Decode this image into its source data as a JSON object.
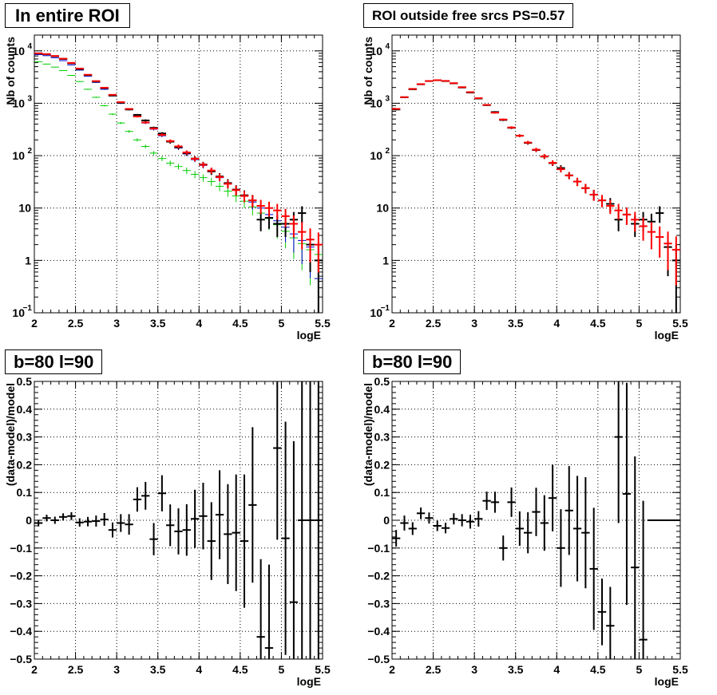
{
  "chart_data": [
    {
      "type": "scatter",
      "title": "In entire ROI",
      "xlabel": "logE",
      "ylabel": "Nb of counts",
      "xlim": [
        2,
        5.5
      ],
      "ylim": [
        0.1,
        20000
      ],
      "yscale": "log",
      "grid": true,
      "x_ticks": [
        "2",
        "2.5",
        "3",
        "3.5",
        "4",
        "4.5",
        "5",
        "5.5"
      ],
      "y_ticks": [
        {
          "value": 0.1,
          "base": "10",
          "exp": "−1"
        },
        {
          "value": 1,
          "base": "1",
          "exp": ""
        },
        {
          "value": 10,
          "base": "10",
          "exp": ""
        },
        {
          "value": 100,
          "base": "10",
          "exp": "2"
        },
        {
          "value": 1000,
          "base": "10",
          "exp": "3"
        },
        {
          "value": 10000,
          "base": "10",
          "exp": "4"
        }
      ],
      "series": [
        {
          "color": "#00cc00",
          "style": "hist",
          "x": [
            2.05,
            2.15,
            2.25,
            2.35,
            2.45,
            2.55,
            2.65,
            2.75,
            2.85,
            2.95,
            3.05,
            3.15,
            3.25,
            3.35,
            3.45,
            3.55,
            3.65,
            3.75,
            3.85,
            3.95,
            4.05,
            4.15,
            4.25,
            4.35,
            4.45,
            4.55,
            4.65,
            4.75,
            4.85,
            4.95,
            5.05,
            5.15,
            5.25,
            5.35,
            5.45
          ],
          "y": [
            6200,
            5600,
            4900,
            4200,
            3400,
            2600,
            1850,
            1300,
            900,
            620,
            420,
            290,
            200,
            150,
            112,
            88,
            72,
            62,
            52,
            44,
            38,
            32,
            26,
            21,
            17,
            13.5,
            10.5,
            8,
            6.3,
            4.8,
            3.6,
            2.7,
            2.1,
            1.6,
            1.3
          ]
        },
        {
          "color": "#0000cc",
          "style": "hist",
          "x": [
            2.05,
            2.15,
            2.25,
            2.35,
            2.45,
            2.55,
            2.65,
            2.75,
            2.85,
            2.95,
            3.05,
            3.15,
            3.25,
            3.35,
            3.45,
            3.55,
            3.65,
            3.75,
            3.85,
            3.95,
            4.05,
            4.15,
            4.25,
            4.35,
            4.45,
            4.55,
            4.65,
            4.75,
            4.85,
            4.95,
            5.05,
            5.15,
            5.25,
            5.35,
            5.45
          ],
          "y": [
            8500,
            8100,
            7400,
            6500,
            5400,
            4300,
            3300,
            2500,
            1850,
            1400,
            1000,
            760,
            560,
            420,
            320,
            240,
            182,
            140,
            108,
            84,
            65,
            50,
            38,
            29,
            22,
            17,
            13,
            10,
            7.5,
            5.7,
            4.3,
            3.2,
            2.4,
            1.8,
            0.45
          ]
        },
        {
          "color": "#000000",
          "style": "errorbar",
          "x": [
            2.05,
            2.15,
            2.25,
            2.35,
            2.45,
            2.55,
            2.65,
            2.75,
            2.85,
            2.95,
            3.05,
            3.15,
            3.25,
            3.35,
            3.45,
            3.55,
            3.65,
            3.75,
            3.85,
            3.95,
            4.05,
            4.15,
            4.25,
            4.35,
            4.45,
            4.55,
            4.65,
            4.75,
            4.85,
            4.95,
            5.05,
            5.15,
            5.25,
            5.35,
            5.45
          ],
          "y": [
            8900,
            8600,
            7900,
            7000,
            5800,
            4500,
            3450,
            2600,
            1950,
            1400,
            1020,
            760,
            600,
            470,
            340,
            265,
            185,
            145,
            112,
            88,
            68,
            50,
            40,
            30,
            22.5,
            17.5,
            14,
            6,
            6.5,
            5,
            5,
            6,
            8,
            2,
            1
          ],
          "err": [
            94,
            93,
            89,
            84,
            76,
            67,
            59,
            51,
            44,
            37,
            32,
            28,
            24,
            22,
            18,
            16,
            14,
            12,
            11,
            9.4,
            8.2,
            7.1,
            6.3,
            5.5,
            4.7,
            4.2,
            3.7,
            2.4,
            2.5,
            2.2,
            2.2,
            2.4,
            2.8,
            1.4,
            1
          ]
        },
        {
          "color": "#ff0000",
          "style": "errorbar",
          "x": [
            2.05,
            2.15,
            2.25,
            2.35,
            2.45,
            2.55,
            2.65,
            2.75,
            2.85,
            2.95,
            3.05,
            3.15,
            3.25,
            3.35,
            3.45,
            3.55,
            3.65,
            3.75,
            3.85,
            3.95,
            4.05,
            4.15,
            4.25,
            4.35,
            4.45,
            4.55,
            4.65,
            4.75,
            4.85,
            4.95,
            5.05,
            5.15,
            5.25,
            5.35,
            5.45
          ],
          "y": [
            9000,
            8700,
            8000,
            7100,
            5900,
            4600,
            3500,
            2650,
            1980,
            1450,
            1050,
            780,
            560,
            430,
            330,
            250,
            190,
            150,
            115,
            87,
            67,
            52,
            39,
            29,
            22,
            17,
            14,
            11,
            10,
            9,
            7,
            5,
            3.5,
            2.5,
            2
          ]
        }
      ]
    },
    {
      "type": "scatter",
      "title": "ROI outside free srcs PS=0.57",
      "xlabel": "logE",
      "ylabel": "Nb of counts",
      "xlim": [
        2,
        5.5
      ],
      "ylim": [
        0.1,
        20000
      ],
      "yscale": "log",
      "grid": true,
      "x_ticks": [
        "2",
        "2.5",
        "3",
        "3.5",
        "4",
        "4.5",
        "5",
        "5.5"
      ],
      "y_ticks": [
        {
          "value": 0.1,
          "base": "10",
          "exp": "−1"
        },
        {
          "value": 1,
          "base": "1",
          "exp": ""
        },
        {
          "value": 10,
          "base": "10",
          "exp": ""
        },
        {
          "value": 100,
          "base": "10",
          "exp": "2"
        },
        {
          "value": 1000,
          "base": "10",
          "exp": "3"
        },
        {
          "value": 10000,
          "base": "10",
          "exp": "4"
        }
      ],
      "series": [
        {
          "color": "#000000",
          "style": "errorbar",
          "x": [
            2.05,
            2.15,
            2.25,
            2.35,
            2.45,
            2.55,
            2.65,
            2.75,
            2.85,
            2.95,
            3.05,
            3.15,
            3.25,
            3.35,
            3.45,
            3.55,
            3.65,
            3.75,
            3.85,
            3.95,
            4.05,
            4.15,
            4.25,
            4.35,
            4.45,
            4.55,
            4.65,
            4.75,
            4.85,
            4.95,
            5.05,
            5.15,
            5.25,
            5.35,
            5.45
          ],
          "y": [
            760,
            1300,
            1850,
            2300,
            2650,
            2750,
            2650,
            2400,
            2000,
            1600,
            1230,
            920,
            680,
            480,
            340,
            240,
            175,
            128,
            96,
            72,
            58,
            42,
            32,
            24,
            18,
            14,
            12,
            6,
            7.5,
            5,
            6,
            5.5,
            8,
            1.8,
            1
          ],
          "err": [
            28,
            36,
            43,
            48,
            51,
            52,
            51,
            49,
            45,
            40,
            35,
            30,
            26,
            22,
            18,
            15,
            13,
            11,
            9.8,
            8.5,
            7.6,
            6.5,
            5.7,
            4.9,
            4.2,
            3.7,
            3.5,
            2.4,
            2.7,
            2.2,
            2.4,
            2.3,
            2.8,
            1.3,
            1
          ]
        },
        {
          "color": "#ff0000",
          "style": "errorbar",
          "x": [
            2.05,
            2.15,
            2.25,
            2.35,
            2.45,
            2.55,
            2.65,
            2.75,
            2.85,
            2.95,
            3.05,
            3.15,
            3.25,
            3.35,
            3.45,
            3.55,
            3.65,
            3.75,
            3.85,
            3.95,
            4.05,
            4.15,
            4.25,
            4.35,
            4.45,
            4.55,
            4.65,
            4.75,
            4.85,
            4.95,
            5.05,
            5.15,
            5.25,
            5.35,
            5.45
          ],
          "y": [
            780,
            1310,
            1880,
            2320,
            2660,
            2760,
            2670,
            2420,
            2030,
            1630,
            1250,
            930,
            660,
            490,
            345,
            240,
            178,
            130,
            97,
            73,
            55,
            42,
            32,
            24,
            18,
            14,
            11,
            9,
            7.5,
            6,
            4.5,
            3.5,
            2.8,
            2.1,
            1.6
          ]
        }
      ]
    },
    {
      "type": "scatter",
      "title": "b=80 l=90",
      "xlabel": "logE",
      "ylabel": "(data-model)/model",
      "xlim": [
        2,
        5.5
      ],
      "ylim": [
        -0.5,
        0.5
      ],
      "grid": true,
      "x_ticks": [
        "2",
        "2.5",
        "3",
        "3.5",
        "4",
        "4.5",
        "5",
        "5.5"
      ],
      "y_ticks": [
        "−0.5",
        "−0.4",
        "−0.3",
        "−0.2",
        "−0.1",
        "0",
        "0.1",
        "0.2",
        "0.3",
        "0.4",
        "0.5"
      ],
      "series": [
        {
          "color": "#000000",
          "style": "errorbar",
          "x": [
            2.05,
            2.15,
            2.25,
            2.35,
            2.45,
            2.55,
            2.65,
            2.75,
            2.85,
            2.95,
            3.05,
            3.15,
            3.25,
            3.35,
            3.45,
            3.55,
            3.65,
            3.75,
            3.85,
            3.95,
            4.05,
            4.15,
            4.25,
            4.35,
            4.45,
            4.55,
            4.65,
            4.75,
            4.85,
            4.95,
            5.05,
            5.15,
            5.25,
            5.35,
            5.45
          ],
          "y": [
            -0.01,
            0.008,
            0.0,
            0.012,
            0.015,
            -0.008,
            -0.005,
            -0.003,
            0.003,
            -0.035,
            -0.01,
            -0.015,
            0.075,
            0.088,
            -0.068,
            0.097,
            -0.018,
            -0.04,
            -0.035,
            0.005,
            0.015,
            -0.075,
            0.02,
            -0.05,
            -0.045,
            -0.075,
            0.055,
            -0.42,
            -0.46,
            0.26,
            -0.065,
            -0.295,
            0.0,
            0.0,
            0.0
          ],
          "err": [
            0.012,
            0.012,
            0.013,
            0.013,
            0.014,
            0.015,
            0.017,
            0.02,
            0.023,
            0.027,
            0.032,
            0.037,
            0.044,
            0.05,
            0.058,
            0.065,
            0.075,
            0.083,
            0.093,
            0.105,
            0.12,
            0.14,
            0.16,
            0.18,
            0.21,
            0.24,
            0.28,
            0.28,
            0.3,
            0.33,
            0.42,
            0.58,
            0.58,
            0.5,
            0.5
          ]
        }
      ]
    },
    {
      "type": "scatter",
      "title": "b=80 l=90",
      "xlabel": "logE",
      "ylabel": "(data-model)/model",
      "xlim": [
        2,
        5.5
      ],
      "ylim": [
        -0.5,
        0.5
      ],
      "grid": true,
      "x_ticks": [
        "2",
        "2.5",
        "3",
        "3.5",
        "4",
        "4.5",
        "5",
        "5.5"
      ],
      "y_ticks": [
        "−0.5",
        "−0.4",
        "−0.3",
        "−0.2",
        "−0.1",
        "0",
        "0.1",
        "0.2",
        "0.3",
        "0.4",
        "0.5"
      ],
      "series": [
        {
          "color": "#000000",
          "style": "errorbar",
          "x": [
            2.05,
            2.15,
            2.25,
            2.35,
            2.45,
            2.55,
            2.65,
            2.75,
            2.85,
            2.95,
            3.05,
            3.15,
            3.25,
            3.35,
            3.45,
            3.55,
            3.65,
            3.75,
            3.85,
            3.95,
            4.05,
            4.15,
            4.25,
            4.35,
            4.45,
            4.55,
            4.65,
            4.75,
            4.85,
            4.95,
            5.05,
            5.15,
            5.25,
            5.35,
            5.45
          ],
          "y": [
            -0.065,
            -0.01,
            -0.03,
            0.025,
            0.008,
            -0.02,
            -0.028,
            0.005,
            0.0,
            -0.005,
            0.005,
            0.07,
            0.065,
            -0.1,
            0.065,
            -0.03,
            -0.045,
            0.03,
            -0.01,
            0.08,
            -0.1,
            0.035,
            -0.03,
            -0.045,
            -0.175,
            -0.33,
            -0.38,
            0.3,
            0.095,
            -0.17,
            -0.43,
            0.0,
            0.0,
            0.0,
            0.0
          ],
          "err": [
            0.03,
            0.027,
            0.023,
            0.021,
            0.02,
            0.019,
            0.019,
            0.02,
            0.022,
            0.025,
            0.028,
            0.033,
            0.038,
            0.045,
            0.053,
            0.062,
            0.074,
            0.087,
            0.1,
            0.12,
            0.14,
            0.16,
            0.19,
            0.2,
            0.22,
            0.12,
            0.14,
            0.31,
            0.4,
            0.4,
            0.5,
            0.0,
            0.0,
            0.0,
            0.0
          ]
        }
      ]
    }
  ]
}
